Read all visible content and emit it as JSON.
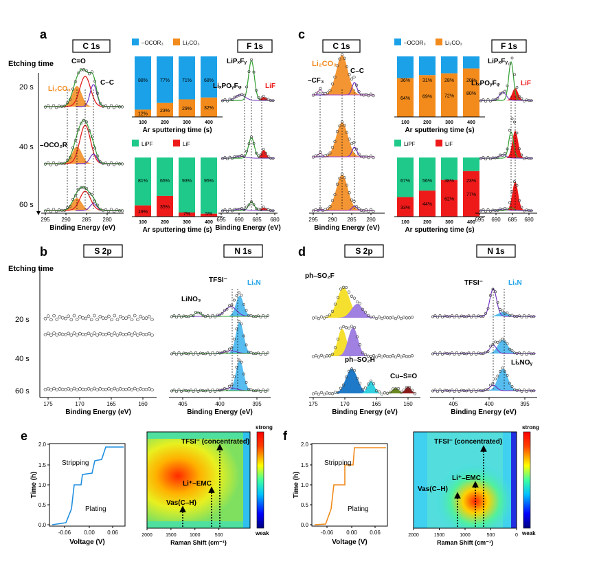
{
  "panels": {
    "a": {
      "letter": "a",
      "etching_label": "Etching time",
      "times": [
        "20 s",
        "40 s",
        "60 s"
      ],
      "c1s": {
        "title": "C 1s",
        "xlabel": "Binding Energy (eV)",
        "ticks": [
          "295",
          "290",
          "285",
          "280"
        ],
        "labels": {
          "co": "C=O",
          "cc": "C–C",
          "li2co3": "Li₂CO₃",
          "ocor": "–OCO₂R"
        }
      },
      "f1s": {
        "title": "F 1s",
        "xlabel": "Binding Energy (eV)",
        "ticks": [
          "695",
          "690",
          "685",
          "680"
        ],
        "labels": {
          "lipxfy": "LiPₓFᵧ",
          "lixpoyfz": "LiₓPOᵧFᵩ",
          "lif": "LiF"
        }
      },
      "bar_top": {
        "legend": [
          "–OCOR₃",
          "Li₂CO₃"
        ],
        "xlabel": "Ar sputtering time (s)",
        "categories": [
          "100",
          "200",
          "300",
          "400"
        ],
        "top_pct": [
          "88%",
          "77%",
          "71%",
          "68%"
        ],
        "bottom_pct": [
          "12%",
          "23%",
          "29%",
          "32%"
        ],
        "bottom_values": [
          12,
          23,
          29,
          32
        ],
        "colors": [
          "#1ba1e8",
          "#f28a1c"
        ]
      },
      "bar_bottom": {
        "legend": [
          "LiPF",
          "LiF"
        ],
        "xlabel": "Ar sputtering time (s)",
        "categories": [
          "100",
          "200",
          "300",
          "400"
        ],
        "top_pct": [
          "81%",
          "65%",
          "93%",
          "95%"
        ],
        "bottom_pct": [
          "19%",
          "35%",
          "7%",
          "5%"
        ],
        "bottom_values": [
          19,
          35,
          7,
          5
        ],
        "colors": [
          "#1ec98a",
          "#ee1a1a"
        ]
      }
    },
    "c": {
      "letter": "c",
      "c1s": {
        "title": "C 1s",
        "xlabel": "Binding Energy (eV)",
        "ticks": [
          "295",
          "290",
          "285",
          "280"
        ],
        "labels": {
          "cf3": "–CF₃",
          "li2co3": "Li₂CO₃",
          "cc": "C–C"
        }
      },
      "f1s": {
        "title": "F 1s",
        "ticks": [
          "695",
          "690",
          "685",
          "680"
        ],
        "labels": {
          "lipxfy": "LiPₓFᵧ",
          "lixpoyfz": "LiₓPOᵧFᵩ",
          "lif": "LiF"
        }
      },
      "bar_top": {
        "legend": [
          "–OCOR₃",
          "Li₂CO₃"
        ],
        "xlabel": "Ar sputtering time (s)",
        "categories": [
          "100",
          "200",
          "300",
          "400"
        ],
        "top_pct": [
          "36%",
          "31%",
          "28%",
          "20%"
        ],
        "bottom_pct": [
          "64%",
          "69%",
          "72%",
          "80%"
        ],
        "bottom_values": [
          64,
          69,
          72,
          80
        ],
        "colors": [
          "#1ba1e8",
          "#f28a1c"
        ]
      },
      "bar_bottom": {
        "legend": [
          "LiPF",
          "LiF"
        ],
        "xlabel": "Ar sputtering time (s)",
        "categories": [
          "100",
          "200",
          "300",
          "400"
        ],
        "top_pct": [
          "67%",
          "56%",
          "38%",
          "23%"
        ],
        "bottom_pct": [
          "33%",
          "44%",
          "62%",
          "77%"
        ],
        "bottom_values": [
          33,
          44,
          62,
          77
        ],
        "colors": [
          "#1ec98a",
          "#ee1a1a"
        ]
      }
    },
    "b": {
      "letter": "b",
      "etching_label": "Etching time",
      "times": [
        "20 s",
        "40 s",
        "60 s"
      ],
      "s2p": {
        "title": "S 2p",
        "xlabel": "Binding Energy (eV)",
        "ticks": [
          "175",
          "170",
          "165",
          "160"
        ]
      },
      "n1s": {
        "title": "N 1s",
        "xlabel": "Binding Energy (eV)",
        "ticks": [
          "405",
          "400",
          "395"
        ],
        "labels": {
          "tfsi": "TFSI⁻",
          "lino3": "LiNO₃",
          "li3n": "LiₓN"
        }
      }
    },
    "d": {
      "letter": "d",
      "s2p": {
        "title": "S 2p",
        "xlabel": "Binding Energy (eV)",
        "ticks": [
          "175",
          "170",
          "165",
          "160"
        ],
        "labels": {
          "phso2f": "ph–SO₂F",
          "phso2h": "ph–SO₂H",
          "cuso": "Cu–S=O"
        }
      },
      "n1s": {
        "title": "N 1s",
        "xlabel": "Binding Energy (eV)",
        "ticks": [
          "405",
          "400",
          "395"
        ],
        "labels": {
          "tfsi": "TFSI⁻",
          "li3n": "LiₓN",
          "lixnoy": "LiₓNOᵧ"
        }
      }
    },
    "e": {
      "letter": "e",
      "volt": {
        "xlabel": "Voltage (V)",
        "ylabel": "Time (h)",
        "xticks": [
          "-0.06",
          "0.00",
          "0.06"
        ],
        "yticks": [
          "0.0",
          "0.5",
          "1.0",
          "1.5",
          "2.0"
        ],
        "stripping": "Stripping",
        "plating": "Plating",
        "color": "#1f8fe0"
      },
      "arrow_labels": {
        "stripping": "Stripping",
        "plating": "Plating"
      },
      "raman": {
        "xlabel": "Raman Shift (cm⁻¹)",
        "xticks": [
          "2000",
          "1500",
          "1000",
          "500"
        ],
        "annotations": {
          "tfsi": "TFSI⁻ (concentrated)",
          "li_emc": "Li⁺–EMC",
          "vas": "Vas(C–H)"
        },
        "scale": {
          "strong": "strong",
          "weak": "weak"
        }
      }
    },
    "f": {
      "letter": "f",
      "volt": {
        "xlabel": "Voltage (V)",
        "ylabel": "Time (h)",
        "xticks": [
          "-0.06",
          "0.00",
          "0.06"
        ],
        "yticks": [
          "0.0",
          "0.5",
          "1.0",
          "1.5",
          "2.0"
        ],
        "stripping": "Stripping",
        "plating": "Plating",
        "color": "#f08a1a"
      },
      "arrow_labels": {
        "stripping": "Stripping",
        "plating": "Plating"
      },
      "raman": {
        "xlabel": "Raman Shift (cm⁻¹)",
        "xticks": [
          "2000",
          "1500",
          "1000",
          "500",
          "0"
        ],
        "annotations": {
          "tfsi": "TFSI⁻ (concentrated)",
          "li_emc": "Li⁺–EMC",
          "vas": "Vas(C–H)"
        },
        "scale": {
          "strong": "strong",
          "weak": "weak"
        }
      }
    }
  }
}
